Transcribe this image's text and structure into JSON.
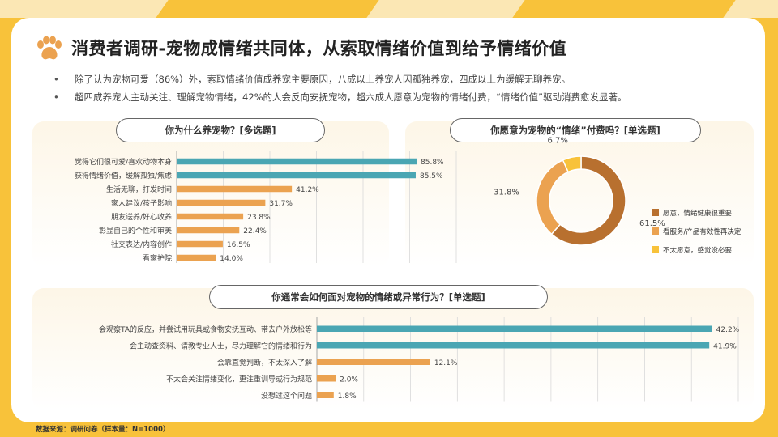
{
  "page": {
    "title": "消费者调研-宠物成情绪共同体，从索取情绪价值到给予情绪价值",
    "bullets": [
      "除了认为宠物可爱（86%）外，索取情绪价值成养宠主要原因，八成以上养宠人因孤独养宠，四成以上为缓解无聊养宠。",
      "超四成养宠人主动关注、理解宠物情绪，42%的人会反向安抚宠物，超六成人愿意为宠物的情绪付费，“情绪价值”驱动消费愈发显著。"
    ],
    "source": "数据来源：调研问卷（样本量：N=1000）",
    "title_icon": "paw-icon",
    "colors": {
      "teal": "#4aa6b3",
      "orange": "#eba250",
      "brown": "#b8702f",
      "yellow": "#f8c23a"
    }
  },
  "chart_data": [
    {
      "type": "bar",
      "orientation": "horizontal",
      "title": "你为什么养宠物？[多选题]",
      "categories": [
        "觉得它们很可爱/喜欢动物本身",
        "获得情绪价值，缓解孤独/焦虑",
        "生活无聊，打发时间",
        "家人建议/孩子影响",
        "朋友送养/好心收养",
        "彰显自己的个性和审美",
        "社交表达/内容创作",
        "看家护院"
      ],
      "values": [
        85.8,
        85.5,
        41.2,
        31.7,
        23.8,
        22.4,
        16.5,
        14.0
      ],
      "value_labels": [
        "85.8%",
        "85.5%",
        "41.2%",
        "31.7%",
        "23.8%",
        "22.4%",
        "16.5%",
        "14.0%"
      ],
      "bar_colors": [
        "#4aa6b3",
        "#4aa6b3",
        "#eba250",
        "#eba250",
        "#eba250",
        "#eba250",
        "#eba250",
        "#eba250"
      ],
      "xlim": [
        0,
        100
      ],
      "grid": true
    },
    {
      "type": "pie",
      "donut": true,
      "title": "你愿意为宠物的“情绪”付费吗？[单选题]",
      "labels": [
        "愿意，情绪健康很重要",
        "看服务/产品有效性再决定",
        "不太愿意，感觉没必要"
      ],
      "values": [
        61.5,
        31.8,
        6.7
      ],
      "value_labels": [
        "61.5%",
        "31.8%",
        "6.7%"
      ],
      "colors": [
        "#b8702f",
        "#eba250",
        "#f8c23a"
      ],
      "legend": "right"
    },
    {
      "type": "bar",
      "orientation": "horizontal",
      "title": "你通常会如何面对宠物的情绪或异常行为？[单选题]",
      "categories": [
        "会观察TA的反应，并尝试用玩具或食物安抚互动、带去户外放松等",
        "会主动查资料、请教专业人士，尽力理解它的情绪和行为",
        "会靠直觉判断，不太深入了解",
        "不太会关注情绪变化，更注重训导或行为规范",
        "没想过这个问题"
      ],
      "values": [
        42.2,
        41.9,
        12.1,
        2.0,
        1.8
      ],
      "value_labels": [
        "42.2%",
        "41.9%",
        "12.1%",
        "2.0%",
        "1.8%"
      ],
      "bar_colors": [
        "#4aa6b3",
        "#4aa6b3",
        "#eba250",
        "#eba250",
        "#eba250"
      ],
      "xlim": [
        0,
        45
      ],
      "grid": true
    }
  ]
}
